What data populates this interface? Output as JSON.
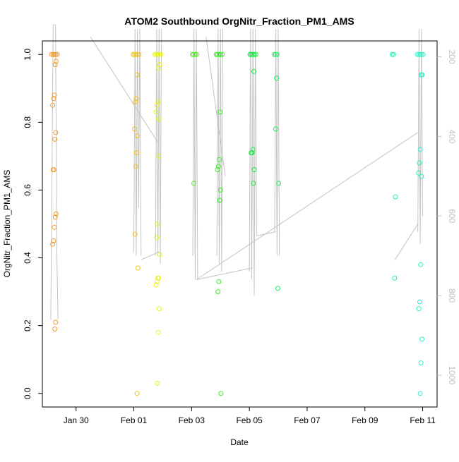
{
  "chart_data": {
    "type": "scatter",
    "title": "ATOM2 Southbound OrgNitr_Fraction_PM1_AMS",
    "xlabel": "Date",
    "ylabel": "OrgNitr_Fraction_PM1_AMS",
    "xlim": [
      "2017-01-28T20:00",
      "2017-02-11T12:00"
    ],
    "ylim": [
      -0.04,
      1.04
    ],
    "y2lim": [
      1080,
      160
    ],
    "x_ticks": [
      {
        "label": "Jan 30",
        "date": "2017-01-30"
      },
      {
        "label": "Feb 01",
        "date": "2017-02-01"
      },
      {
        "label": "Feb 03",
        "date": "2017-02-03"
      },
      {
        "label": "Feb 05",
        "date": "2017-02-05"
      },
      {
        "label": "Feb 07",
        "date": "2017-02-07"
      },
      {
        "label": "Feb 09",
        "date": "2017-02-09"
      },
      {
        "label": "Feb 11",
        "date": "2017-02-11"
      }
    ],
    "y_ticks": [
      {
        "label": "0.0",
        "value": 0.0
      },
      {
        "label": "0.2",
        "value": 0.2
      },
      {
        "label": "0.4",
        "value": 0.4
      },
      {
        "label": "0.6",
        "value": 0.6
      },
      {
        "label": "0.8",
        "value": 0.8
      },
      {
        "label": "1.0",
        "value": 1.0
      }
    ],
    "y2_ticks": [
      {
        "label": "200",
        "value": 200
      },
      {
        "label": "400",
        "value": 400
      },
      {
        "label": "600",
        "value": 600
      },
      {
        "label": "800",
        "value": 800
      },
      {
        "label": "1000",
        "value": 1000
      }
    ],
    "grid": false,
    "legend": "none",
    "colors": {
      "point_scale": [
        "#ee9a2a",
        "#f0c21d",
        "#e9f21a",
        "#c6f719",
        "#55f01f",
        "#14ec3c",
        "#1ff07d",
        "#22f2b1",
        "#2cf3c8"
      ],
      "profile_line": "#c4c4c4",
      "right_axis": "#c0c0c0"
    },
    "groups": [
      {
        "date": "2017-01-29T06:00",
        "color": "#ee9a2a",
        "values": [
          1.0,
          1.0,
          1.0,
          1.0,
          1.0,
          0.98,
          0.97,
          0.88,
          0.87,
          0.85,
          0.77,
          0.75,
          0.66,
          0.66,
          0.53,
          0.52,
          0.49,
          0.45,
          0.44,
          0.21,
          0.19
        ]
      },
      {
        "date": "2017-02-01T02:00",
        "color": "#f0c21d",
        "values": [
          1.0,
          1.0,
          1.0,
          1.0,
          1.0,
          1.0,
          0.94,
          0.87,
          0.86,
          0.78,
          0.76,
          0.71,
          0.67,
          0.47,
          0.37,
          0.0
        ]
      },
      {
        "date": "2017-02-01T20:00",
        "color": "#e9f21a",
        "values": [
          1.0,
          1.0,
          1.0,
          1.0,
          1.0,
          0.97,
          0.96,
          0.86,
          0.85,
          0.83,
          0.81,
          0.7,
          0.5,
          0.46,
          0.41,
          0.34,
          0.34,
          0.33,
          0.32,
          0.25,
          0.18,
          0.03
        ]
      },
      {
        "date": "2017-02-03T03:00",
        "color": "#55f01f",
        "values": [
          1.0,
          1.0,
          1.0,
          1.0,
          0.62
        ]
      },
      {
        "date": "2017-02-03T23:00",
        "color": "#34ef23",
        "values": [
          1.0,
          1.0,
          1.0,
          1.0,
          1.0,
          1.0,
          0.83,
          0.69,
          0.67,
          0.66,
          0.6,
          0.57,
          0.33,
          0.3,
          0.0
        ]
      },
      {
        "date": "2017-02-05T03:00",
        "color": "#14ec3c",
        "values": [
          1.0,
          1.0,
          1.0,
          1.0,
          1.0,
          1.0,
          0.95,
          0.72,
          0.71,
          0.71,
          0.66,
          0.62
        ]
      },
      {
        "date": "2017-02-05T23:00",
        "color": "#1bee66",
        "values": [
          1.0,
          1.0,
          1.0,
          0.93,
          0.78,
          0.62,
          0.31
        ]
      },
      {
        "date": "2017-02-10T01:00",
        "color": "#22f2b1",
        "values": [
          1.0,
          1.0,
          0.58,
          0.34
        ]
      },
      {
        "date": "2017-02-10T22:00",
        "color": "#2cf3c8",
        "values": [
          1.0,
          1.0,
          1.0,
          1.0,
          1.0,
          0.94,
          0.94,
          0.72,
          0.68,
          0.65,
          0.64,
          0.38,
          0.27,
          0.25,
          0.16,
          0.09,
          0.0
        ]
      }
    ],
    "profile_lines": [
      {
        "points": [
          [
            "2017-01-29T03:00",
            860
          ],
          [
            "2017-01-29T04:00",
            500
          ],
          [
            "2017-01-29T05:00",
            120
          ],
          [
            "2017-01-29T07:00",
            120
          ],
          [
            "2017-01-29T08:00",
            700
          ],
          [
            "2017-01-29T09:00",
            860
          ]
        ]
      },
      {
        "points": [
          [
            "2017-01-30T12:00",
            150
          ],
          [
            "2017-02-01T20:00",
            415
          ]
        ]
      },
      {
        "points": [
          [
            "2017-02-01T00:00",
            690
          ],
          [
            "2017-02-01T01:00",
            130
          ],
          [
            "2017-02-01T02:00",
            700
          ],
          [
            "2017-02-01T03:00",
            130
          ],
          [
            "2017-02-01T04:00",
            580
          ],
          [
            "2017-02-01T05:00",
            130
          ],
          [
            "2017-02-01T06:00",
            700
          ]
        ]
      },
      {
        "points": [
          [
            "2017-02-01T18:00",
            700
          ],
          [
            "2017-02-01T19:00",
            130
          ],
          [
            "2017-02-01T20:00",
            700
          ],
          [
            "2017-02-01T21:00",
            130
          ],
          [
            "2017-02-01T22:00",
            720
          ],
          [
            "2017-02-01T23:00",
            130
          ]
        ]
      },
      {
        "points": [
          [
            "2017-02-01T06:00",
            710
          ],
          [
            "2017-02-01T21:00",
            690
          ]
        ]
      },
      {
        "points": [
          [
            "2017-02-03T01:00",
            700
          ],
          [
            "2017-02-03T02:00",
            130
          ],
          [
            "2017-02-03T03:00",
            760
          ],
          [
            "2017-02-03T04:00",
            130
          ],
          [
            "2017-02-03T05:00",
            760
          ]
        ]
      },
      {
        "points": [
          [
            "2017-02-03T12:00",
            150
          ],
          [
            "2017-02-04T04:00",
            500
          ]
        ]
      },
      {
        "points": [
          [
            "2017-02-03T21:00",
            700
          ],
          [
            "2017-02-03T22:00",
            130
          ],
          [
            "2017-02-03T23:00",
            720
          ],
          [
            "2017-02-04T00:00",
            130
          ],
          [
            "2017-02-04T01:00",
            740
          ],
          [
            "2017-02-04T02:00",
            130
          ]
        ]
      },
      {
        "points": [
          [
            "2017-02-03T04:00",
            760
          ],
          [
            "2017-02-05T03:00",
            730
          ]
        ]
      },
      {
        "points": [
          [
            "2017-02-05T00:00",
            740
          ],
          [
            "2017-02-05T01:00",
            130
          ],
          [
            "2017-02-05T02:00",
            760
          ],
          [
            "2017-02-05T03:00",
            130
          ],
          [
            "2017-02-05T04:00",
            800
          ],
          [
            "2017-02-05T05:00",
            130
          ],
          [
            "2017-02-05T06:00",
            650
          ]
        ]
      },
      {
        "points": [
          [
            "2017-02-05T06:00",
            650
          ],
          [
            "2017-02-05T22:00",
            640
          ]
        ]
      },
      {
        "points": [
          [
            "2017-02-05T21:00",
            640
          ],
          [
            "2017-02-05T22:00",
            130
          ],
          [
            "2017-02-05T23:00",
            700
          ],
          [
            "2017-02-06T00:00",
            130
          ],
          [
            "2017-02-06T01:00",
            700
          ]
        ]
      },
      {
        "points": [
          [
            "2017-02-03T04:00",
            760
          ],
          [
            "2017-02-10T20:00",
            390
          ]
        ]
      },
      {
        "points": [
          [
            "2017-02-10T01:00",
            710
          ],
          [
            "2017-02-10T20:00",
            620
          ]
        ]
      },
      {
        "points": [
          [
            "2017-02-10T20:00",
            640
          ],
          [
            "2017-02-10T21:00",
            130
          ],
          [
            "2017-02-10T22:00",
            670
          ],
          [
            "2017-02-10T23:00",
            130
          ],
          [
            "2017-02-11T00:00",
            600
          ]
        ]
      }
    ]
  }
}
